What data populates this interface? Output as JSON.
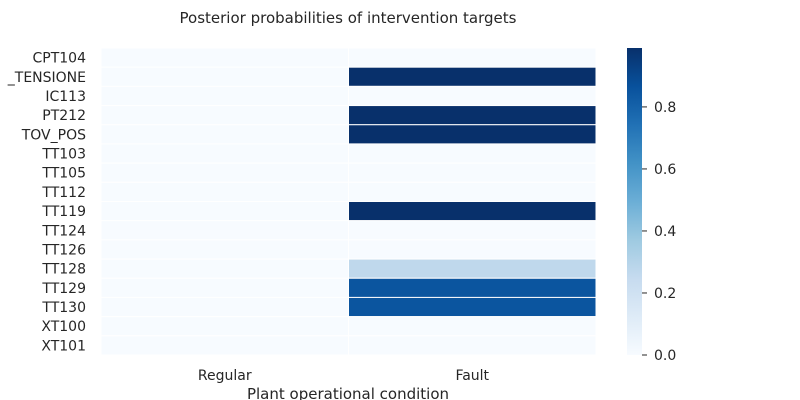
{
  "chart_data": {
    "type": "heatmap",
    "title": "Posterior probabilities of intervention targets",
    "xlabel": "Plant operational condition",
    "ylabel": "",
    "x_categories": [
      "Regular",
      "Fault"
    ],
    "y_categories": [
      "CPT104",
      "_TENSIONE",
      "IC113",
      "PT212",
      "TOV_POS",
      "TT103",
      "TT105",
      "TT112",
      "TT119",
      "TT124",
      "TT126",
      "TT128",
      "TT129",
      "TT130",
      "XT100",
      "XT101"
    ],
    "values": [
      [
        0.0,
        0.0
      ],
      [
        0.0,
        0.99
      ],
      [
        0.0,
        0.0
      ],
      [
        0.0,
        0.99
      ],
      [
        0.0,
        0.99
      ],
      [
        0.0,
        0.0
      ],
      [
        0.0,
        0.0
      ],
      [
        0.0,
        0.0
      ],
      [
        0.0,
        0.99
      ],
      [
        0.0,
        0.0
      ],
      [
        0.0,
        0.0
      ],
      [
        0.0,
        0.27
      ],
      [
        0.0,
        0.85
      ],
      [
        0.0,
        0.85
      ],
      [
        0.0,
        0.0
      ],
      [
        0.0,
        0.0
      ]
    ],
    "colormap": "Blues",
    "colorbar": {
      "min": 0.0,
      "max": 0.99,
      "ticks": [
        0.0,
        0.2,
        0.4,
        0.6,
        0.8
      ],
      "tick_labels": [
        "0.0",
        "0.2",
        "0.4",
        "0.6",
        "0.8"
      ]
    },
    "grid": true,
    "grid_color": "#ffffff",
    "colorbar_position": "right"
  }
}
